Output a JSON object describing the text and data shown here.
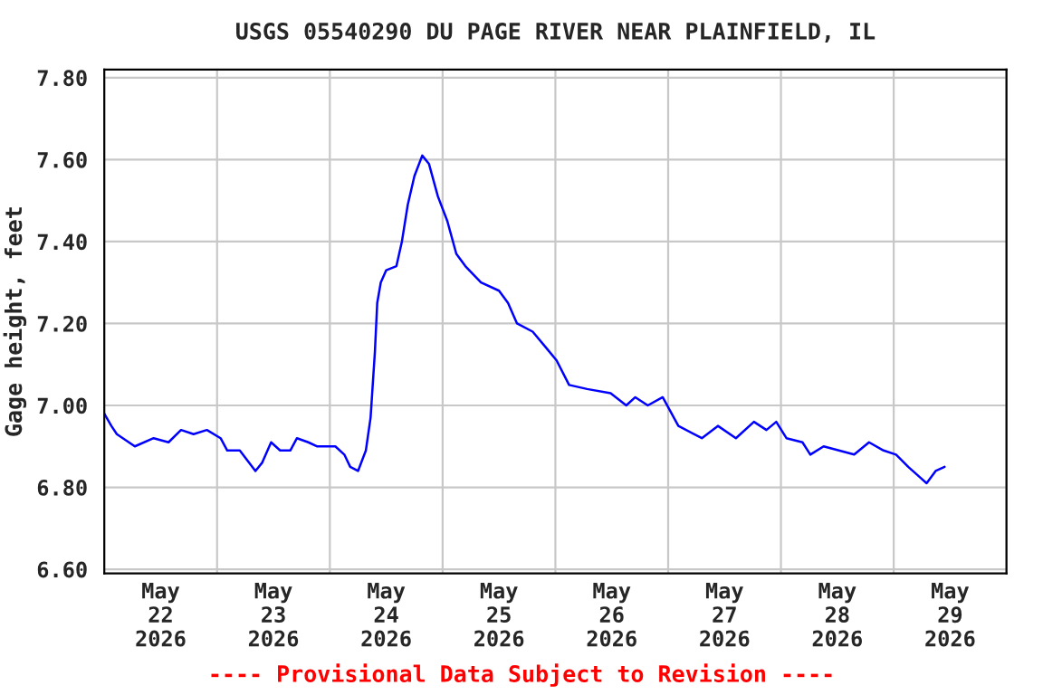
{
  "chart_data": {
    "type": "line",
    "title": "USGS 05540290 DU PAGE RIVER NEAR PLAINFIELD, IL",
    "ylabel": "Gage height, feet",
    "annotations": [
      "---- Provisional Data Subject to Revision ----"
    ],
    "x": [
      "2026-05-22T00:00",
      "2026-05-22T01:30",
      "2026-05-22T02:40",
      "2026-05-22T06:30",
      "2026-05-22T10:30",
      "2026-05-22T13:40",
      "2026-05-22T16:20",
      "2026-05-22T19:00",
      "2026-05-22T21:50",
      "2026-05-23T00:45",
      "2026-05-23T02:10",
      "2026-05-23T04:50",
      "2026-05-23T08:10",
      "2026-05-23T09:35",
      "2026-05-23T11:30",
      "2026-05-23T13:25",
      "2026-05-23T15:35",
      "2026-05-23T17:00",
      "2026-05-23T19:25",
      "2026-05-23T21:20",
      "2026-05-24T01:10",
      "2026-05-24T03:05",
      "2026-05-24T04:20",
      "2026-05-24T06:00",
      "2026-05-24T07:40",
      "2026-05-24T08:40",
      "2026-05-24T09:35",
      "2026-05-24T10:05",
      "2026-05-24T10:50",
      "2026-05-24T12:00",
      "2026-05-24T14:10",
      "2026-05-24T15:20",
      "2026-05-24T16:35",
      "2026-05-24T18:00",
      "2026-05-24T19:40",
      "2026-05-24T21:05",
      "2026-05-24T23:00",
      "2026-05-25T01:00",
      "2026-05-25T02:55",
      "2026-05-25T04:50",
      "2026-05-25T08:10",
      "2026-05-25T12:00",
      "2026-05-25T13:55",
      "2026-05-25T15:50",
      "2026-05-25T19:10",
      "2026-05-25T22:05",
      "2026-05-26T00:15",
      "2026-05-26T02:55",
      "2026-05-26T06:45",
      "2026-05-26T11:45",
      "2026-05-26T15:05",
      "2026-05-26T17:00",
      "2026-05-26T19:40",
      "2026-05-26T22:50",
      "2026-05-27T02:10",
      "2026-05-27T07:10",
      "2026-05-27T10:35",
      "2026-05-27T14:25",
      "2026-05-27T18:15",
      "2026-05-27T20:55",
      "2026-05-27T23:00",
      "2026-05-28T01:10",
      "2026-05-28T04:35",
      "2026-05-28T06:15",
      "2026-05-28T09:05",
      "2026-05-28T15:35",
      "2026-05-28T18:45",
      "2026-05-28T21:50",
      "2026-05-29T00:30",
      "2026-05-29T03:05",
      "2026-05-29T07:00",
      "2026-05-29T08:55",
      "2026-05-29T10:50"
    ],
    "series": [
      {
        "color": "#0000ff",
        "values": [
          6.98,
          6.95,
          6.93,
          6.9,
          6.92,
          6.91,
          6.94,
          6.93,
          6.94,
          6.92,
          6.89,
          6.89,
          6.84,
          6.86,
          6.91,
          6.89,
          6.89,
          6.92,
          6.91,
          6.9,
          6.9,
          6.88,
          6.85,
          6.84,
          6.89,
          6.97,
          7.13,
          7.25,
          7.3,
          7.33,
          7.34,
          7.4,
          7.49,
          7.56,
          7.61,
          7.59,
          7.51,
          7.45,
          7.37,
          7.34,
          7.3,
          7.28,
          7.25,
          7.2,
          7.18,
          7.14,
          7.11,
          7.05,
          7.04,
          7.03,
          7.0,
          7.02,
          7.0,
          7.02,
          6.95,
          6.92,
          6.95,
          6.92,
          6.96,
          6.94,
          6.96,
          6.92,
          6.91,
          6.88,
          6.9,
          6.88,
          6.91,
          6.89,
          6.88,
          6.85,
          6.81,
          6.84,
          6.85
        ]
      }
    ],
    "xlim": [
      "2026-05-22T00:00",
      "2026-05-30T00:00"
    ],
    "xticks": [
      {
        "value": "2026-05-22T12:00",
        "label": "May\n22\n2026"
      },
      {
        "value": "2026-05-23T00:00",
        "label": null
      },
      {
        "value": "2026-05-23T12:00",
        "label": "May\n23\n2026"
      },
      {
        "value": "2026-05-24T00:00",
        "label": null
      },
      {
        "value": "2026-05-24T12:00",
        "label": "May\n24\n2026"
      },
      {
        "value": "2026-05-25T00:00",
        "label": null
      },
      {
        "value": "2026-05-25T12:00",
        "label": "May\n25\n2026"
      },
      {
        "value": "2026-05-26T00:00",
        "label": null
      },
      {
        "value": "2026-05-26T12:00",
        "label": "May\n26\n2026"
      },
      {
        "value": "2026-05-27T00:00",
        "label": null
      },
      {
        "value": "2026-05-27T12:00",
        "label": "May\n27\n2026"
      },
      {
        "value": "2026-05-28T00:00",
        "label": null
      },
      {
        "value": "2026-05-28T12:00",
        "label": "May\n28\n2026"
      },
      {
        "value": "2026-05-29T00:00",
        "label": null
      },
      {
        "value": "2026-05-29T12:00",
        "label": "May\n29\n2026"
      },
      {
        "value": "2026-05-30T00:00",
        "label": null
      }
    ],
    "ylim": [
      6.59,
      7.82
    ],
    "yticks": [
      {
        "value": 6.6,
        "label": "6.60"
      },
      {
        "value": 6.8,
        "label": "6.80"
      },
      {
        "value": 7.0,
        "label": "7.00"
      },
      {
        "value": 7.2,
        "label": "7.20"
      },
      {
        "value": 7.4,
        "label": "7.40"
      },
      {
        "value": 7.6,
        "label": "7.60"
      },
      {
        "value": 7.8,
        "label": "7.80"
      }
    ],
    "grid": true,
    "marker": "none",
    "line_style": "solid"
  }
}
